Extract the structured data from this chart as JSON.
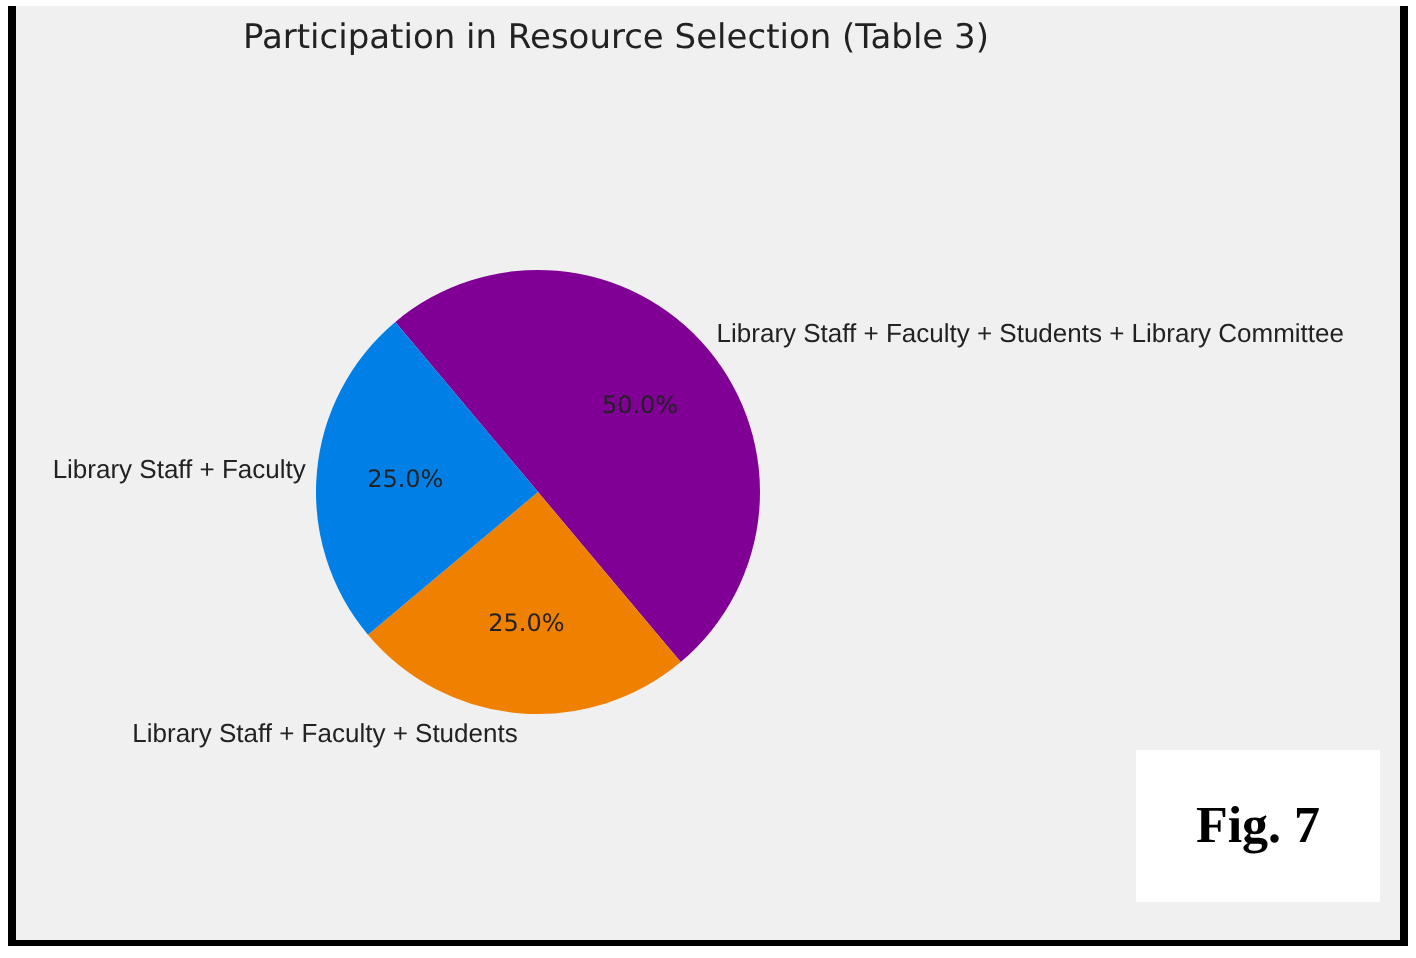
{
  "chart_data": {
    "type": "pie",
    "title": "Participation in Resource Selection (Table 3)",
    "categories": [
      "Library Staff + Faculty + Students + Library Committee",
      "Library Staff + Faculty + Students",
      "Library Staff + Faculty"
    ],
    "values": [
      50,
      25,
      25
    ],
    "colors": [
      "#800096",
      "#f08000",
      "#0080e6"
    ],
    "value_labels": [
      "50.0%",
      "25.0%",
      "25.0%"
    ],
    "legend": false,
    "annotations": [
      "Fig. 7"
    ]
  }
}
